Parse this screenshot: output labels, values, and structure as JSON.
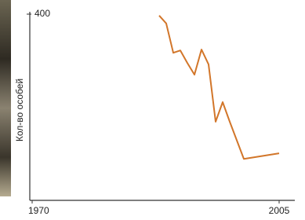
{
  "chart_data": {
    "type": "line",
    "y_label": "Кол-во особей",
    "x": [
      1988,
      1989,
      1990,
      1991,
      1992,
      1993,
      1994,
      1995,
      1996,
      1997,
      1998,
      2000,
      2005
    ],
    "series": [
      {
        "color": "#d2762a",
        "values": [
          397,
          380,
          317,
          322,
          295,
          270,
          324,
          292,
          169,
          211,
          169,
          89,
          101
        ]
      }
    ],
    "xlim": [
      1970,
      2007
    ],
    "xticks": [
      1970,
      2005
    ],
    "ylim": [
      0,
      400
    ],
    "yticks": [
      400
    ]
  }
}
